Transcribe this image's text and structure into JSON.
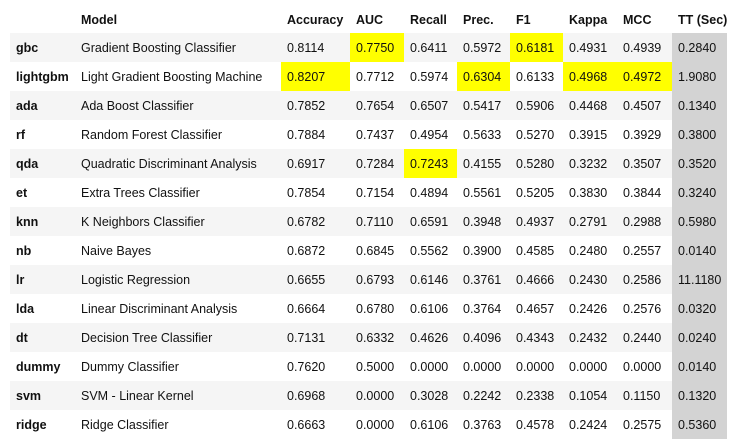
{
  "table": {
    "columns": [
      "",
      "Model",
      "Accuracy",
      "AUC",
      "Recall",
      "Prec.",
      "F1",
      "Kappa",
      "MCC",
      "TT (Sec)"
    ],
    "rows": [
      {
        "id": "gbc",
        "model": "Gradient Boosting Classifier",
        "values": [
          "0.8114",
          "0.7750",
          "0.6411",
          "0.5972",
          "0.6181",
          "0.4931",
          "0.4939",
          "0.2840"
        ]
      },
      {
        "id": "lightgbm",
        "model": "Light Gradient Boosting Machine",
        "values": [
          "0.8207",
          "0.7712",
          "0.5974",
          "0.6304",
          "0.6133",
          "0.4968",
          "0.4972",
          "1.9080"
        ]
      },
      {
        "id": "ada",
        "model": "Ada Boost Classifier",
        "values": [
          "0.7852",
          "0.7654",
          "0.6507",
          "0.5417",
          "0.5906",
          "0.4468",
          "0.4507",
          "0.1340"
        ]
      },
      {
        "id": "rf",
        "model": "Random Forest Classifier",
        "values": [
          "0.7884",
          "0.7437",
          "0.4954",
          "0.5633",
          "0.5270",
          "0.3915",
          "0.3929",
          "0.3800"
        ]
      },
      {
        "id": "qda",
        "model": "Quadratic Discriminant Analysis",
        "values": [
          "0.6917",
          "0.7284",
          "0.7243",
          "0.4155",
          "0.5280",
          "0.3232",
          "0.3507",
          "0.3520"
        ]
      },
      {
        "id": "et",
        "model": "Extra Trees Classifier",
        "values": [
          "0.7854",
          "0.7154",
          "0.4894",
          "0.5561",
          "0.5205",
          "0.3830",
          "0.3844",
          "0.3240"
        ]
      },
      {
        "id": "knn",
        "model": "K Neighbors Classifier",
        "values": [
          "0.6782",
          "0.7110",
          "0.6591",
          "0.3948",
          "0.4937",
          "0.2791",
          "0.2988",
          "0.5980"
        ]
      },
      {
        "id": "nb",
        "model": "Naive Bayes",
        "values": [
          "0.6872",
          "0.6845",
          "0.5562",
          "0.3900",
          "0.4585",
          "0.2480",
          "0.2557",
          "0.0140"
        ]
      },
      {
        "id": "lr",
        "model": "Logistic Regression",
        "values": [
          "0.6655",
          "0.6793",
          "0.6146",
          "0.3761",
          "0.4666",
          "0.2430",
          "0.2586",
          "11.1180"
        ]
      },
      {
        "id": "lda",
        "model": "Linear Discriminant Analysis",
        "values": [
          "0.6664",
          "0.6780",
          "0.6106",
          "0.3764",
          "0.4657",
          "0.2426",
          "0.2576",
          "0.0320"
        ]
      },
      {
        "id": "dt",
        "model": "Decision Tree Classifier",
        "values": [
          "0.7131",
          "0.6332",
          "0.4626",
          "0.4096",
          "0.4343",
          "0.2432",
          "0.2440",
          "0.0240"
        ]
      },
      {
        "id": "dummy",
        "model": "Dummy Classifier",
        "values": [
          "0.7620",
          "0.5000",
          "0.0000",
          "0.0000",
          "0.0000",
          "0.0000",
          "0.0000",
          "0.0140"
        ]
      },
      {
        "id": "svm",
        "model": "SVM - Linear Kernel",
        "values": [
          "0.6968",
          "0.0000",
          "0.3028",
          "0.2242",
          "0.2338",
          "0.1054",
          "0.1150",
          "0.1320"
        ]
      },
      {
        "id": "ridge",
        "model": "Ridge Classifier",
        "values": [
          "0.6663",
          "0.0000",
          "0.6106",
          "0.3763",
          "0.4578",
          "0.2424",
          "0.2575",
          "0.5360"
        ]
      }
    ],
    "highlights": [
      {
        "row": 1,
        "col": 0
      },
      {
        "row": 0,
        "col": 1
      },
      {
        "row": 4,
        "col": 2
      },
      {
        "row": 1,
        "col": 3
      },
      {
        "row": 0,
        "col": 4
      },
      {
        "row": 1,
        "col": 5
      },
      {
        "row": 1,
        "col": 6
      }
    ],
    "colors": {
      "highlight": "#ffff00",
      "time_column": "#d3d3d3",
      "stripe": "#f5f5f5"
    }
  }
}
